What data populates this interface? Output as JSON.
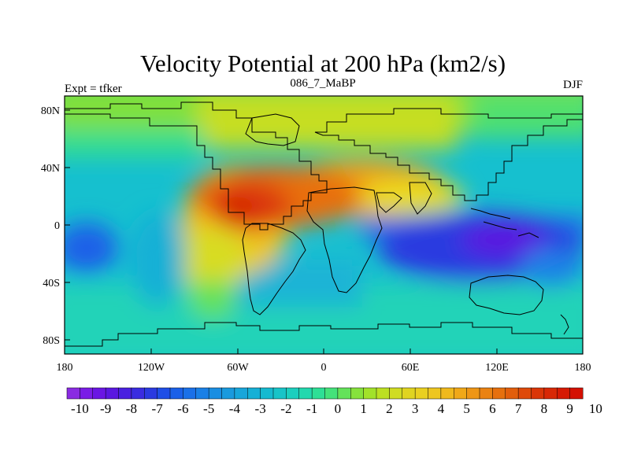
{
  "title": "Velocity Potential at 200 hPa (km2/s)",
  "left_label": "Expt = tfker",
  "center_label": "086_7_MaBP",
  "right_label": "DJF",
  "map": {
    "projection": "cylindrical equidistant",
    "lon_range": [
      -180,
      180
    ],
    "lat_range": [
      -90,
      90
    ],
    "field": "velocity potential",
    "level": "200 hPa",
    "units": "km2/s"
  },
  "x_ticks": [
    "180",
    "120W",
    "60W",
    "0",
    "60E",
    "120E",
    "180"
  ],
  "y_ticks": [
    "80N",
    "40N",
    "0",
    "40S",
    "80S"
  ],
  "colorbar": {
    "labels": [
      "-10",
      "-9",
      "-8",
      "-7",
      "-6",
      "-5",
      "-4",
      "-3",
      "-2",
      "-1",
      "0",
      "1",
      "2",
      "3",
      "4",
      "5",
      "6",
      "7",
      "8",
      "9",
      "10"
    ],
    "levels": [
      -10,
      -9.5,
      -9,
      -8.5,
      -8,
      -7.5,
      -7,
      -6.5,
      -6,
      -5.5,
      -5,
      -4.5,
      -4,
      -3.5,
      -3,
      -2.5,
      -2,
      -1.5,
      -1,
      -0.5,
      0,
      0.5,
      1,
      1.5,
      2,
      2.5,
      3,
      3.5,
      4,
      4.5,
      5,
      5.5,
      6,
      6.5,
      7,
      7.5,
      8,
      8.5,
      9,
      9.5,
      10
    ],
    "colors": [
      "#8a2be2",
      "#7a1de6",
      "#6a16e3",
      "#5a18e0",
      "#4a20e0",
      "#3a2ce0",
      "#2a3ae0",
      "#1f4ee6",
      "#1a60e8",
      "#1a70e8",
      "#1a80e6",
      "#1a8ee2",
      "#1a9ade",
      "#18a6da",
      "#16b0d6",
      "#16bad0",
      "#18c4c8",
      "#1ccfbe",
      "#22d8ae",
      "#2edf96",
      "#44e27a",
      "#64e25a",
      "#86e23c",
      "#a2e22a",
      "#bce022",
      "#d0dc22",
      "#e0d420",
      "#ead020",
      "#eec620",
      "#f0b91c",
      "#f0a818",
      "#ee9616",
      "#ea8212",
      "#e6700e",
      "#e25e0c",
      "#de4a0a",
      "#da3608",
      "#d82806",
      "#d61a04",
      "#d41002"
    ]
  },
  "anomaly_centers": [
    {
      "name": "positive-max-americas",
      "lon": -100,
      "lat": 12,
      "value": 10
    },
    {
      "name": "positive-ridge-africa-asia",
      "lon": 20,
      "lat": 30,
      "value": 8
    },
    {
      "name": "negative-min-indo-pacific",
      "lon": 140,
      "lat": -20,
      "value": -10
    },
    {
      "name": "negative-min-central-pacific",
      "lon": -170,
      "lat": -20,
      "value": -10
    }
  ]
}
